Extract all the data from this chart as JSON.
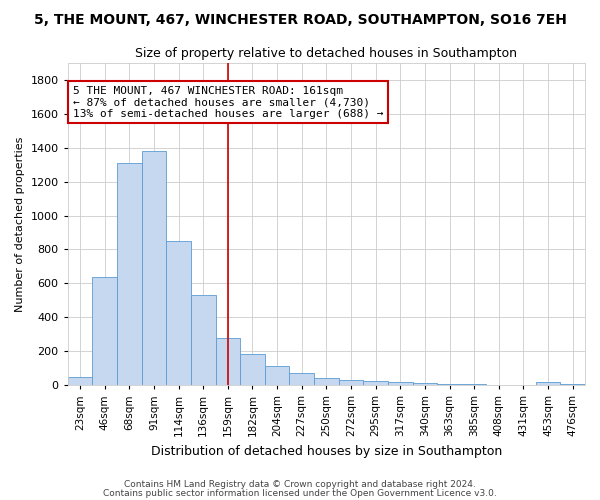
{
  "title": "5, THE MOUNT, 467, WINCHESTER ROAD, SOUTHAMPTON, SO16 7EH",
  "subtitle": "Size of property relative to detached houses in Southampton",
  "xlabel": "Distribution of detached houses by size in Southampton",
  "ylabel": "Number of detached properties",
  "footer_line1": "Contains HM Land Registry data © Crown copyright and database right 2024.",
  "footer_line2": "Contains public sector information licensed under the Open Government Licence v3.0.",
  "bar_labels": [
    "23sqm",
    "46sqm",
    "68sqm",
    "91sqm",
    "114sqm",
    "136sqm",
    "159sqm",
    "182sqm",
    "204sqm",
    "227sqm",
    "250sqm",
    "272sqm",
    "295sqm",
    "317sqm",
    "340sqm",
    "363sqm",
    "385sqm",
    "408sqm",
    "431sqm",
    "453sqm",
    "476sqm"
  ],
  "bar_values": [
    50,
    640,
    1310,
    1380,
    850,
    530,
    275,
    185,
    110,
    70,
    40,
    30,
    25,
    20,
    10,
    5,
    5,
    3,
    3,
    15,
    5
  ],
  "bar_color": "#c5d8ef",
  "bar_edge_color": "#5b9bd5",
  "annotation_text": "5 THE MOUNT, 467 WINCHESTER ROAD: 161sqm\n← 87% of detached houses are smaller (4,730)\n13% of semi-detached houses are larger (688) →",
  "vline_x_index": 6,
  "vline_color": "#cc0000",
  "annotation_box_edge_color": "#cc0000",
  "grid_color": "#cccccc",
  "background_color": "#ffffff",
  "ylim": [
    0,
    1900
  ],
  "yticks": [
    0,
    200,
    400,
    600,
    800,
    1000,
    1200,
    1400,
    1600,
    1800
  ],
  "title_fontsize": 10,
  "subtitle_fontsize": 9,
  "xlabel_fontsize": 9,
  "ylabel_fontsize": 8,
  "xtick_fontsize": 7.5,
  "ytick_fontsize": 8,
  "annotation_fontsize": 8,
  "footer_fontsize": 6.5
}
